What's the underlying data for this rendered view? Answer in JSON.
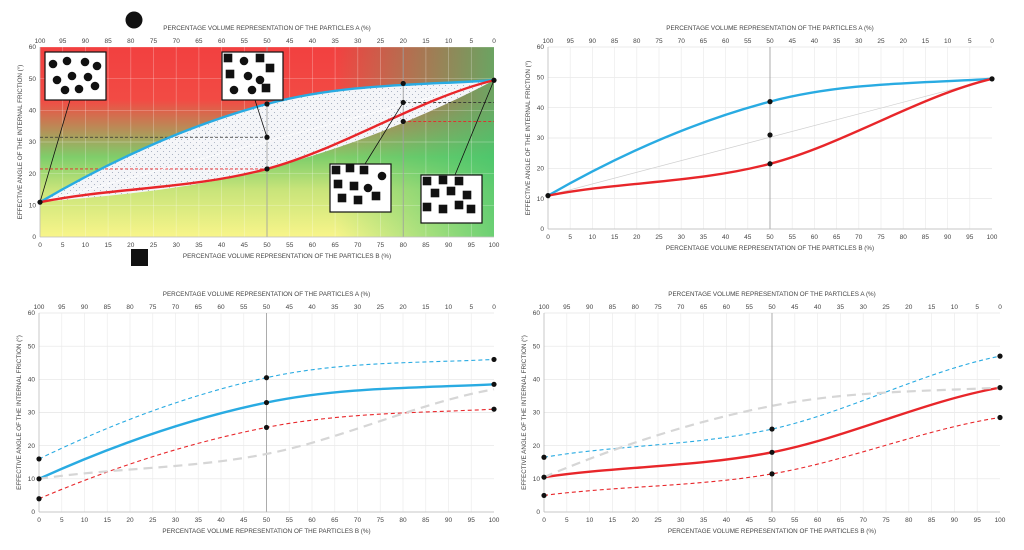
{
  "axes": {
    "x_top_label": "PERCENTAGE VOLUME REPRESENTATION OF THE PARTICLES A (%)",
    "x_bottom_label": "PERCENTAGE VOLUME REPRESENTATION OF THE PARTICLES B (%)",
    "y_label": "EFFECTIVE ANGLE OF THE INTERNAL FRICTION (°)",
    "x_ticks": [
      0,
      5,
      10,
      15,
      20,
      25,
      30,
      35,
      40,
      45,
      50,
      55,
      60,
      65,
      70,
      75,
      80,
      85,
      90,
      95,
      100
    ],
    "x_top_ticks": [
      100,
      95,
      90,
      85,
      80,
      75,
      70,
      65,
      60,
      55,
      50,
      45,
      40,
      35,
      30,
      25,
      20,
      15,
      10,
      5,
      0
    ],
    "y_ticks": [
      0,
      10,
      20,
      30,
      40,
      50,
      60
    ],
    "xlim": [
      0,
      100
    ],
    "ylim": [
      0,
      60
    ]
  },
  "colors": {
    "blue": "#29abe2",
    "red": "#e8262a",
    "gray_dash": "#d6d6d6",
    "bg_red": "#f24040",
    "bg_green": "#3ec46d",
    "bg_yellow": "#f8f58a"
  },
  "legend": {
    "particle_a_icon": "black-circle-icon",
    "particle_b_icon": "black-square-icon"
  },
  "chart_data": [
    {
      "type": "line",
      "panel": "top-left",
      "background": "colored-zones",
      "x": [
        0,
        50,
        100
      ],
      "series": [
        {
          "color": "#29abe2",
          "style": "solid",
          "values": [
            11,
            42,
            49.5
          ]
        },
        {
          "color": "#e8262a",
          "style": "solid",
          "values": [
            11,
            21.5,
            49.5
          ]
        }
      ],
      "markers": [
        {
          "x": 0,
          "y": 11
        },
        {
          "x": 50,
          "y": 42
        },
        {
          "x": 50,
          "y": 31.5
        },
        {
          "x": 50,
          "y": 21.5
        },
        {
          "x": 80,
          "y": 48.5
        },
        {
          "x": 80,
          "y": 42.5
        },
        {
          "x": 80,
          "y": 36.5
        },
        {
          "x": 100,
          "y": 49.5
        }
      ],
      "reference_lines": [
        {
          "x1": 0,
          "y1": 31.5,
          "x2": 50,
          "y2": 31.5,
          "color": "#333333"
        },
        {
          "x1": 0,
          "y1": 21.5,
          "x2": 50,
          "y2": 21.5,
          "color": "#e8262a"
        },
        {
          "x1": 80,
          "y1": 42.5,
          "x2": 100,
          "y2": 42.5,
          "color": "#333333"
        },
        {
          "x1": 80,
          "y1": 36.5,
          "x2": 100,
          "y2": 36.5,
          "color": "#e8262a"
        }
      ],
      "insets": [
        {
          "icon": "black-circles-icon",
          "fraction_b": 0
        },
        {
          "icon": "circles-and-squares-icon",
          "fraction_b": 50
        },
        {
          "icon": "squares-and-circle-icon",
          "fraction_b": 80
        },
        {
          "icon": "black-squares-icon",
          "fraction_b": 100
        }
      ]
    },
    {
      "type": "line",
      "panel": "top-right",
      "x": [
        0,
        50,
        100
      ],
      "series": [
        {
          "color": "#29abe2",
          "style": "solid",
          "values": [
            11,
            42,
            49.5
          ]
        },
        {
          "color": "#e8262a",
          "style": "solid",
          "values": [
            11,
            21.5,
            49.5
          ]
        }
      ],
      "markers": [
        {
          "x": 0,
          "y": 11
        },
        {
          "x": 50,
          "y": 42
        },
        {
          "x": 50,
          "y": 31
        },
        {
          "x": 50,
          "y": 21.5
        },
        {
          "x": 100,
          "y": 49.5
        }
      ]
    },
    {
      "type": "line",
      "panel": "bottom-left",
      "x": [
        0,
        50,
        100
      ],
      "series": [
        {
          "color": "#29abe2",
          "style": "dashed",
          "values": [
            16,
            40.5,
            46
          ]
        },
        {
          "color": "#29abe2",
          "style": "solid",
          "values": [
            10,
            33,
            38.5
          ]
        },
        {
          "color": "#e8262a",
          "style": "dashed",
          "values": [
            4,
            25.5,
            31
          ]
        },
        {
          "color": "#d6d6d6",
          "style": "dashed",
          "values": [
            10,
            17.5,
            37
          ]
        }
      ],
      "markers": [
        {
          "x": 0,
          "y": 16
        },
        {
          "x": 0,
          "y": 10
        },
        {
          "x": 0,
          "y": 4
        },
        {
          "x": 50,
          "y": 40.5
        },
        {
          "x": 50,
          "y": 33
        },
        {
          "x": 50,
          "y": 25.5
        },
        {
          "x": 100,
          "y": 46
        },
        {
          "x": 100,
          "y": 38.5
        },
        {
          "x": 100,
          "y": 31
        }
      ]
    },
    {
      "type": "line",
      "panel": "bottom-right",
      "x": [
        0,
        50,
        100
      ],
      "series": [
        {
          "color": "#29abe2",
          "style": "dashed",
          "values": [
            16.5,
            25,
            47
          ]
        },
        {
          "color": "#e8262a",
          "style": "solid",
          "values": [
            10.5,
            18,
            37.5
          ]
        },
        {
          "color": "#e8262a",
          "style": "dashed",
          "values": [
            5,
            11.5,
            28.5
          ]
        },
        {
          "color": "#d6d6d6",
          "style": "dashed",
          "values": [
            10.5,
            32,
            37.5
          ]
        }
      ],
      "markers": [
        {
          "x": 0,
          "y": 16.5
        },
        {
          "x": 0,
          "y": 10.5
        },
        {
          "x": 0,
          "y": 5
        },
        {
          "x": 50,
          "y": 25
        },
        {
          "x": 50,
          "y": 18
        },
        {
          "x": 50,
          "y": 11.5
        },
        {
          "x": 100,
          "y": 47
        },
        {
          "x": 100,
          "y": 37.5
        },
        {
          "x": 100,
          "y": 28.5
        }
      ]
    }
  ]
}
